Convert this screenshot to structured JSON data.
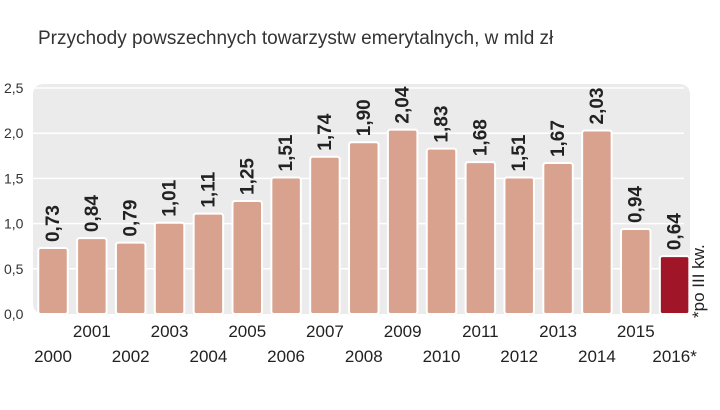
{
  "chart_data": {
    "type": "bar",
    "title": "Przychody powszechnych towarzystw emerytalnych, w mld zł",
    "xlabel": "",
    "ylabel": "",
    "ylim": [
      0,
      2.5
    ],
    "y_ticks": [
      "0,0",
      "0,5",
      "1,0",
      "1,5",
      "2,0",
      "2,5"
    ],
    "y_tick_values": [
      0,
      0.5,
      1.0,
      1.5,
      2.0,
      2.5
    ],
    "grid": true,
    "categories": [
      "2000",
      "2001",
      "2002",
      "2003",
      "2004",
      "2005",
      "2006",
      "2007",
      "2008",
      "2009",
      "2010",
      "2011",
      "2012",
      "2013",
      "2014",
      "2015",
      "2016*"
    ],
    "values": [
      0.73,
      0.84,
      0.79,
      1.01,
      1.11,
      1.25,
      1.51,
      1.74,
      1.9,
      2.04,
      1.83,
      1.68,
      1.51,
      1.67,
      2.03,
      0.94,
      0.64
    ],
    "value_labels": [
      "0,73",
      "0,84",
      "0,79",
      "1,01",
      "1,11",
      "1,25",
      "1,51",
      "1,74",
      "1,90",
      "2,04",
      "1,83",
      "1,68",
      "1,51",
      "1,67",
      "2,03",
      "0,94",
      "0,64"
    ],
    "highlight_index": 16,
    "annotation": "*po III kw.",
    "colors": {
      "bar": "#d9a28e",
      "bar_highlight": "#a01628",
      "plot_background": "#ebebeb",
      "grid": "#ffffff",
      "text": "#222222"
    }
  }
}
